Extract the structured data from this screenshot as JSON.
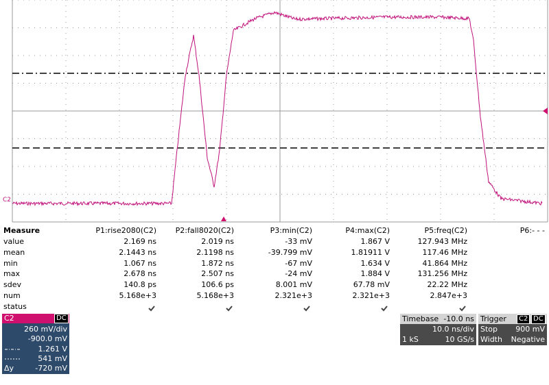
{
  "channel_label": "C2",
  "measure": {
    "title": "Measure",
    "headers": [
      "P1:rise2080(C2)",
      "P2:fall8020(C2)",
      "P3:min(C2)",
      "P4:max(C2)",
      "P5:freq(C2)",
      "P6:- - -"
    ],
    "rows": [
      {
        "label": "value",
        "cells": [
          "2.169 ns",
          "2.019 ns",
          "-33 mV",
          "1.867 V",
          "127.943 MHz"
        ]
      },
      {
        "label": "mean",
        "cells": [
          "2.1443 ns",
          "2.1198 ns",
          "-39.799 mV",
          "1.81911 V",
          "117.46 MHz"
        ]
      },
      {
        "label": "min",
        "cells": [
          "1.067 ns",
          "1.872 ns",
          "-67 mV",
          "1.634 V",
          "41.864 MHz"
        ]
      },
      {
        "label": "max",
        "cells": [
          "2.678 ns",
          "2.507 ns",
          "-24 mV",
          "1.884 V",
          "131.256 MHz"
        ]
      },
      {
        "label": "sdev",
        "cells": [
          "140.8 ps",
          "106.6 ps",
          "8.001 mV",
          "67.78 mV",
          "22.22 MHz"
        ]
      },
      {
        "label": "num",
        "cells": [
          "5.168e+3",
          "5.168e+3",
          "2.321e+3",
          "2.321e+3",
          "2.847e+3"
        ]
      }
    ],
    "status_label": "status"
  },
  "channel_box": {
    "name": "C2",
    "coupling": "DC",
    "scale": "260 mV/div",
    "offset": "-900.0 mV",
    "cursor1": "1.261 V",
    "cursor2": "541 mV",
    "delta_label": "Δy",
    "delta": "-720 mV"
  },
  "timebase": {
    "label": "Timebase",
    "delay": "-10.0 ns",
    "scale": "10.0 ns/div",
    "samples": "1 kS",
    "rate": "10 GS/s"
  },
  "trigger": {
    "label": "Trigger",
    "channel": "C2",
    "coupling": "DC",
    "mode": "Stop",
    "level": "900 mV",
    "type": "Width",
    "polarity": "Negative"
  }
}
